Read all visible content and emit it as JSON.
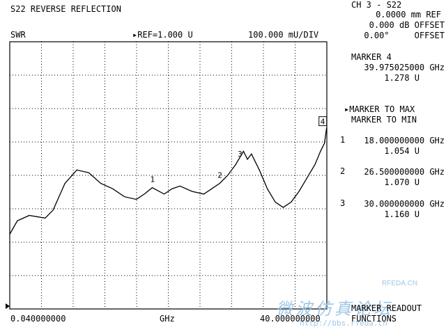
{
  "header": {
    "title": "S22 REVERSE REFLECTION",
    "format": "SWR",
    "ref": "REF=1.000 U",
    "scale": "100.000 mU/DIV"
  },
  "channel": {
    "line1": "CH 3 - S22",
    "line2": "0.0000 mm REF",
    "line3": "0.000 dB OFFSET",
    "line4": "0.00°     OFFSET"
  },
  "active_marker": {
    "label": "MARKER 4",
    "freq": "39.975025000 GHz",
    "value": "1.278 U"
  },
  "menu": {
    "to_max": "MARKER TO MAX",
    "to_min": "MARKER TO MIN",
    "readout": "MARKER READOUT",
    "functions": "FUNCTIONS"
  },
  "markers": [
    {
      "num": "1",
      "freq": "18.000000000 GHz",
      "value": "1.054 U"
    },
    {
      "num": "2",
      "freq": "26.500000000 GHz",
      "value": "1.070 U"
    },
    {
      "num": "3",
      "freq": "30.000000000 GHz",
      "value": "1.160 U"
    }
  ],
  "axis": {
    "start": "0.040000000",
    "unit": "GHz",
    "stop": "40.000000000"
  },
  "trace_labels": [
    "1",
    "2",
    "3",
    "4"
  ],
  "watermark": {
    "logo": "RFEDA.CN",
    "chars": "微波仿真论坛",
    "url": "http://bbs.rfeda.cn"
  },
  "chart_data": {
    "type": "line",
    "xlabel": "GHz",
    "xlim": [
      0.04,
      40.0
    ],
    "ylim": [
      0.6,
      1.6
    ],
    "series": [
      {
        "x": [
          0.04,
          1.0,
          2.5,
          4.5,
          5.5,
          7.0,
          8.5,
          10.0,
          11.5,
          13.0,
          14.5,
          16.0,
          17.0,
          18.0,
          19.5,
          20.5,
          21.5,
          23.0,
          24.5,
          25.5,
          26.5,
          27.5,
          28.5,
          29.5,
          30.0,
          30.5,
          31.5,
          32.5,
          33.5,
          34.5,
          35.5,
          36.5,
          37.5,
          38.5,
          39.2,
          39.7,
          39.975
        ],
        "y": [
          0.88,
          0.93,
          0.95,
          0.94,
          0.97,
          1.07,
          1.12,
          1.11,
          1.07,
          1.05,
          1.02,
          1.01,
          1.03,
          1.054,
          1.03,
          1.05,
          1.06,
          1.04,
          1.03,
          1.05,
          1.07,
          1.1,
          1.14,
          1.19,
          1.16,
          1.18,
          1.12,
          1.05,
          1.0,
          0.98,
          1.0,
          1.04,
          1.09,
          1.14,
          1.19,
          1.22,
          1.278
        ]
      }
    ]
  }
}
